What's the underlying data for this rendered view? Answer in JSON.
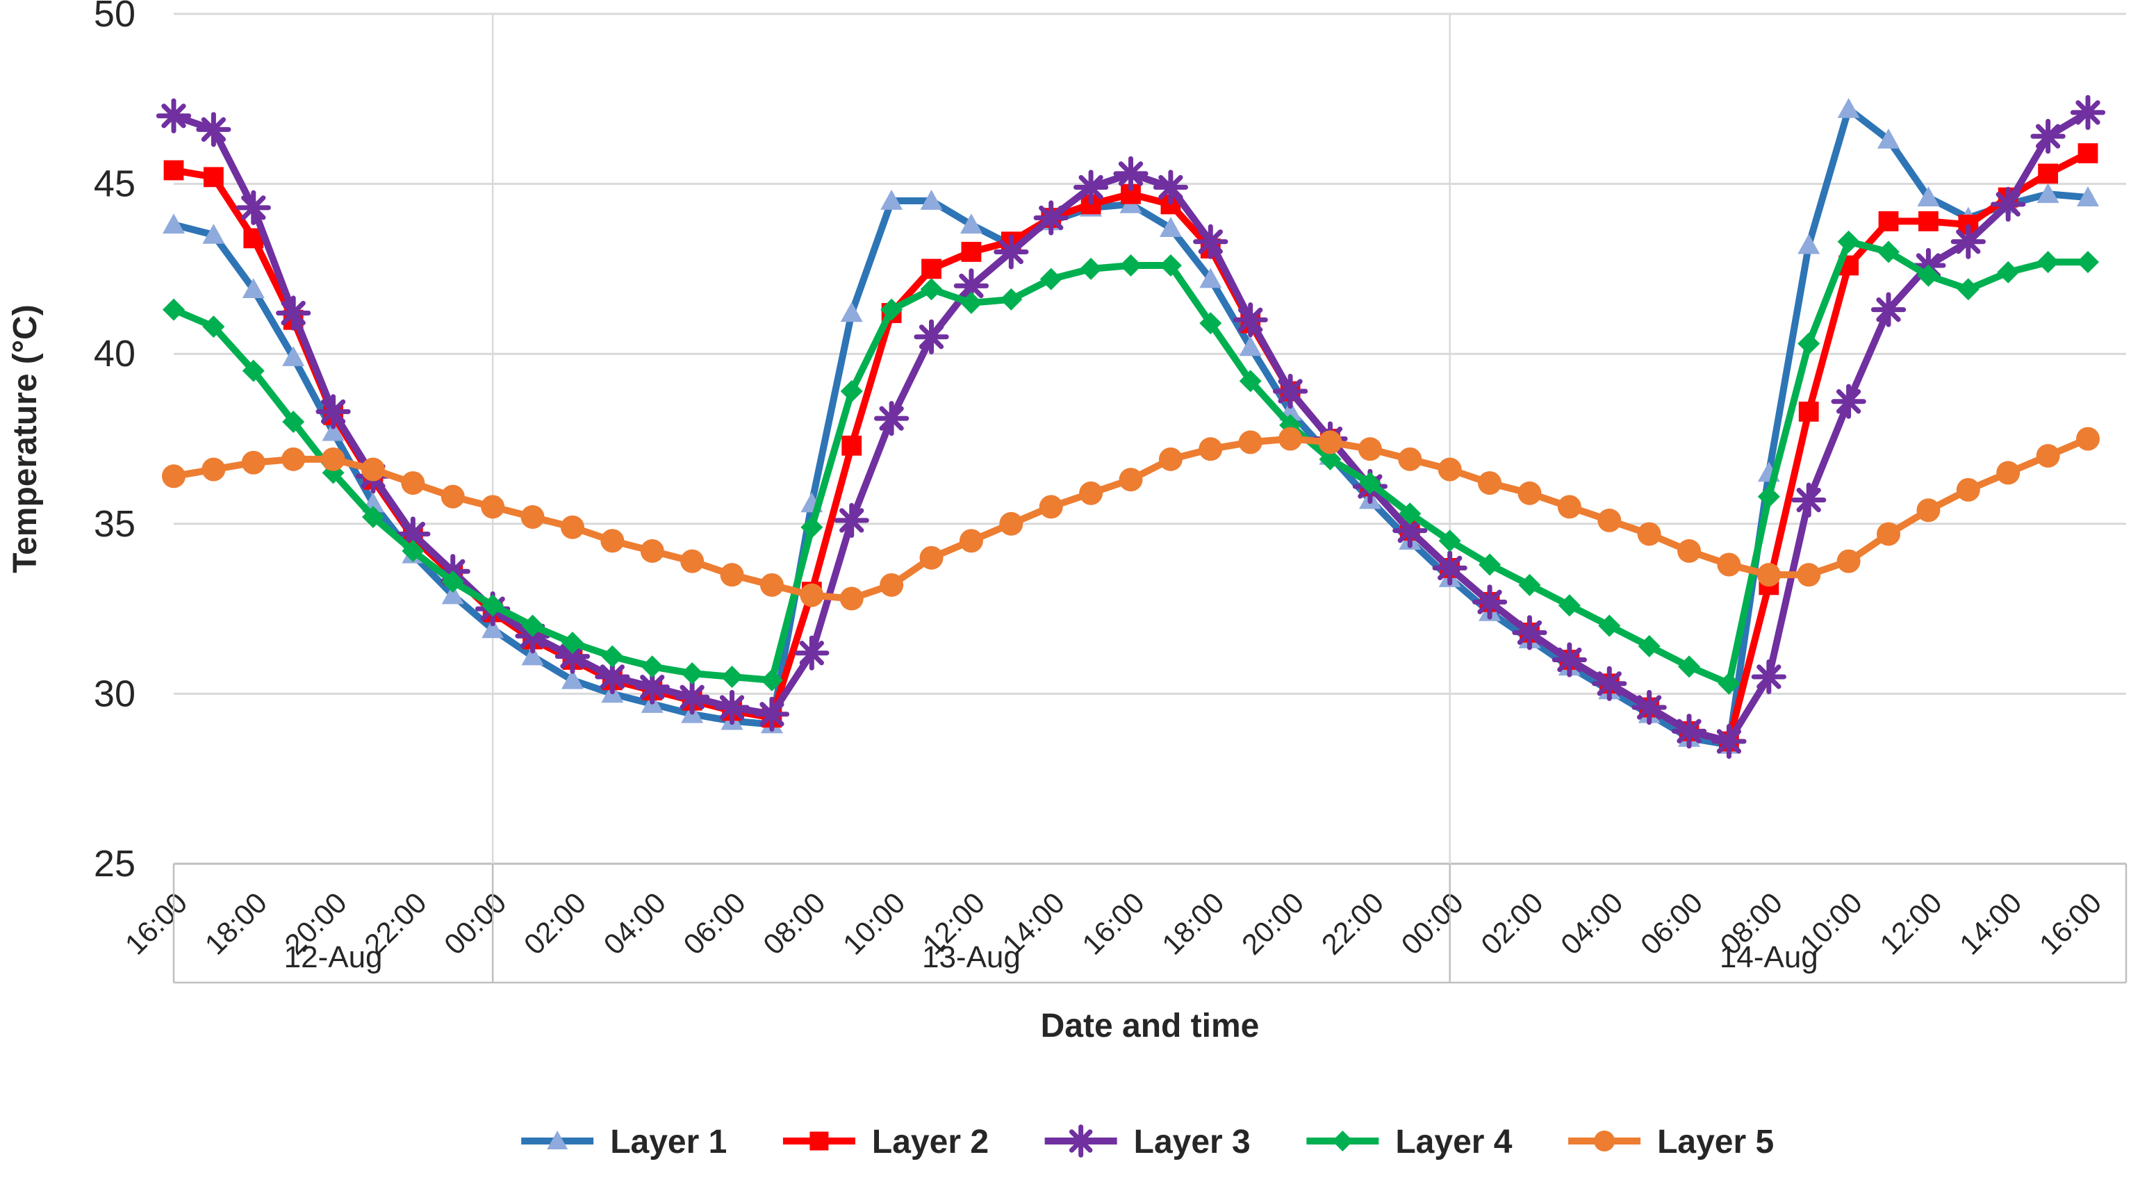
{
  "chart_data": {
    "type": "line",
    "title": "",
    "xlabel": "Date and time",
    "ylabel": "Temperature (°C)",
    "ylim": [
      25,
      50
    ],
    "yticks": [
      25,
      30,
      35,
      40,
      45,
      50
    ],
    "grid": "horizontal",
    "legend_position": "bottom",
    "x_hours_total": 48,
    "tick_every_hours": 2,
    "x_tick_labels": [
      "16:00",
      "18:00",
      "20:00",
      "22:00",
      "00:00",
      "02:00",
      "04:00",
      "06:00",
      "08:00",
      "10:00",
      "12:00",
      "14:00",
      "16:00",
      "18:00",
      "20:00",
      "22:00",
      "00:00",
      "02:00",
      "04:00",
      "06:00",
      "08:00",
      "10:00",
      "12:00",
      "14:00",
      "16:00"
    ],
    "day_groups": [
      {
        "label": "12-Aug",
        "start_hour": 0,
        "end_hour": 8
      },
      {
        "label": "13-Aug",
        "start_hour": 8,
        "end_hour": 32
      },
      {
        "label": "14-Aug",
        "start_hour": 32,
        "end_hour": 48
      }
    ],
    "series": [
      {
        "name": "Layer 1",
        "marker": "triangle",
        "color": "#2E75B6",
        "marker_color": "#8FAADC",
        "values": [
          43.8,
          43.5,
          41.9,
          39.9,
          37.7,
          35.6,
          34.1,
          32.9,
          31.9,
          31.1,
          30.4,
          30.0,
          29.7,
          29.4,
          29.2,
          29.1,
          35.6,
          41.2,
          44.5,
          44.5,
          43.8,
          43.2,
          43.9,
          44.3,
          44.4,
          43.7,
          42.2,
          40.2,
          38.3,
          37.0,
          35.7,
          34.5,
          33.4,
          32.4,
          31.6,
          30.8,
          30.1,
          29.4,
          28.7,
          28.5,
          36.5,
          43.2,
          47.2,
          46.3,
          44.6,
          44.0,
          44.4,
          44.7,
          44.6
        ]
      },
      {
        "name": "Layer 2",
        "marker": "square",
        "color": "#FF0000",
        "marker_color": "#FF0000",
        "values": [
          45.4,
          45.2,
          43.4,
          41.0,
          38.2,
          36.3,
          34.6,
          33.5,
          32.4,
          31.6,
          31.0,
          30.4,
          30.1,
          29.8,
          29.5,
          29.3,
          33.0,
          37.3,
          41.2,
          42.5,
          43.0,
          43.3,
          44.0,
          44.4,
          44.7,
          44.4,
          43.1,
          40.9,
          38.9,
          37.5,
          36.1,
          34.8,
          33.7,
          32.7,
          31.8,
          31.0,
          30.3,
          29.6,
          28.9,
          28.6,
          33.2,
          38.3,
          42.6,
          43.9,
          43.9,
          43.8,
          44.6,
          45.3,
          45.9
        ]
      },
      {
        "name": "Layer 3",
        "marker": "asterisk",
        "color": "#7030A0",
        "marker_color": "#7030A0",
        "values": [
          47.0,
          46.6,
          44.3,
          41.2,
          38.3,
          36.4,
          34.7,
          33.6,
          32.5,
          31.7,
          31.1,
          30.5,
          30.2,
          29.9,
          29.6,
          29.4,
          31.2,
          35.1,
          38.1,
          40.5,
          42.0,
          43.0,
          44.0,
          44.9,
          45.3,
          44.9,
          43.3,
          41.0,
          38.9,
          37.5,
          36.1,
          34.8,
          33.7,
          32.7,
          31.8,
          31.0,
          30.3,
          29.6,
          28.9,
          28.6,
          30.5,
          35.7,
          38.6,
          41.3,
          42.6,
          43.3,
          44.4,
          46.4,
          47.1
        ]
      },
      {
        "name": "Layer 4",
        "marker": "diamond",
        "color": "#00B050",
        "marker_color": "#00B050",
        "values": [
          41.3,
          40.8,
          39.5,
          38.0,
          36.5,
          35.2,
          34.2,
          33.3,
          32.6,
          32.0,
          31.5,
          31.1,
          30.8,
          30.6,
          30.5,
          30.4,
          34.9,
          38.9,
          41.3,
          41.9,
          41.5,
          41.6,
          42.2,
          42.5,
          42.6,
          42.6,
          40.9,
          39.2,
          37.9,
          36.9,
          36.2,
          35.3,
          34.5,
          33.8,
          33.2,
          32.6,
          32.0,
          31.4,
          30.8,
          30.3,
          35.8,
          40.3,
          43.3,
          43.0,
          42.3,
          41.9,
          42.4,
          42.7,
          42.7
        ]
      },
      {
        "name": "Layer 5",
        "marker": "circle",
        "color": "#ED7D31",
        "marker_color": "#ED7D31",
        "values": [
          36.4,
          36.6,
          36.8,
          36.9,
          36.9,
          36.6,
          36.2,
          35.8,
          35.5,
          35.2,
          34.9,
          34.5,
          34.2,
          33.9,
          33.5,
          33.2,
          32.9,
          32.8,
          33.2,
          34.0,
          34.5,
          35.0,
          35.5,
          35.9,
          36.3,
          36.9,
          37.2,
          37.4,
          37.5,
          37.4,
          37.2,
          36.9,
          36.6,
          36.2,
          35.9,
          35.5,
          35.1,
          34.7,
          34.2,
          33.8,
          33.5,
          33.5,
          33.9,
          34.7,
          35.4,
          36.0,
          36.5,
          37.0,
          37.5
        ]
      }
    ]
  },
  "styles": {
    "gridline_color": "#D9D9D9",
    "axis_line_color": "#BFBFBF",
    "text_color": "#262626",
    "background_color": "#FFFFFF"
  }
}
